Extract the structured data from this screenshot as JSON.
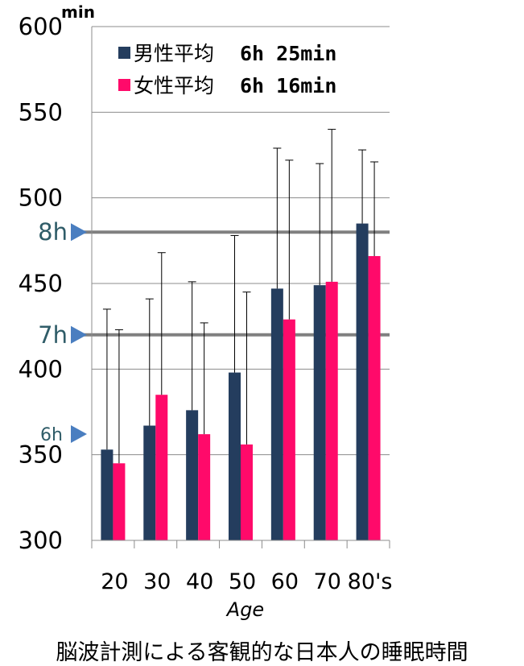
{
  "chart_data": {
    "type": "bar",
    "categories": [
      "20",
      "30",
      "40",
      "50",
      "60",
      "70",
      "80's"
    ],
    "series": [
      {
        "name": "男性平均",
        "summary": "6h 25min",
        "color": "#243d5e",
        "values": [
          353,
          367,
          376,
          398,
          447,
          449,
          485
        ],
        "error_upper": [
          435,
          441,
          451,
          478,
          529,
          520,
          528
        ]
      },
      {
        "name": "女性平均",
        "summary": "6h 16min",
        "color": "#ff0a6a",
        "values": [
          345,
          385,
          362,
          356,
          429,
          451,
          466
        ],
        "error_upper": [
          423,
          468,
          427,
          445,
          522,
          540,
          521
        ]
      }
    ],
    "ylim": [
      300,
      600
    ],
    "yticks": [
      "300",
      "350",
      "400",
      "450",
      "500",
      "550",
      "600"
    ],
    "yunit": "min",
    "xlabel": "Age",
    "reference_lines": [
      {
        "label": "8h",
        "value": 480
      },
      {
        "label": "7h",
        "value": 420
      },
      {
        "label": "6h",
        "value": 360,
        "line": false
      }
    ],
    "grid": true,
    "legend_position": "top"
  },
  "caption": "脳波計測による客観的な日本人の睡眠時間",
  "colors": {
    "ref_line": "#808080",
    "ref_arrow": "#4a7ec0",
    "ref_text": "#2f5c68",
    "grid": "#8c8c8c"
  }
}
